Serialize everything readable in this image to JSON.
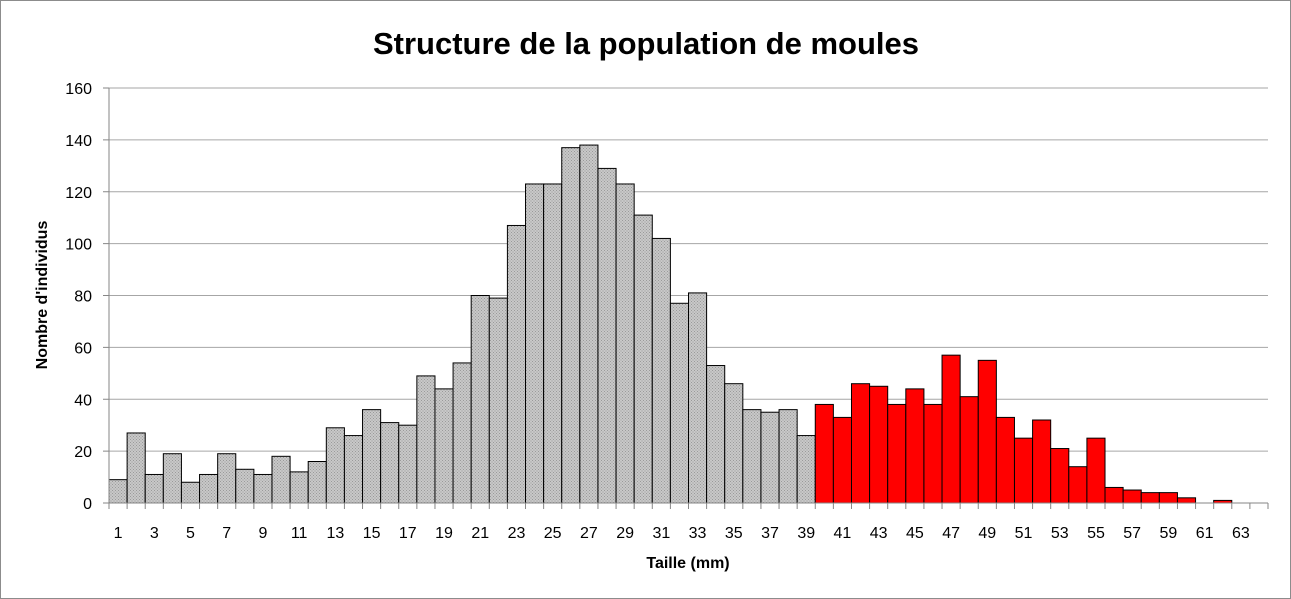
{
  "chart_data": {
    "type": "bar",
    "title": "Structure de la population de moules",
    "xlabel": "Taille (mm)",
    "ylabel": "Nombre d'individus",
    "ylim": [
      0,
      160
    ],
    "yticks": [
      0,
      20,
      40,
      60,
      80,
      100,
      120,
      140,
      160
    ],
    "grid": true,
    "legend": "none",
    "categories": [
      1,
      2,
      3,
      4,
      5,
      6,
      7,
      8,
      9,
      10,
      11,
      12,
      13,
      14,
      15,
      16,
      17,
      18,
      19,
      20,
      21,
      22,
      23,
      24,
      25,
      26,
      27,
      28,
      29,
      30,
      31,
      32,
      33,
      34,
      35,
      36,
      37,
      38,
      39,
      40,
      41,
      42,
      43,
      44,
      45,
      46,
      47,
      48,
      49,
      50,
      51,
      52,
      53,
      54,
      55,
      56,
      57,
      58,
      59,
      60,
      61,
      62,
      63,
      64
    ],
    "xtick_labels": [
      1,
      3,
      5,
      7,
      9,
      11,
      13,
      15,
      17,
      19,
      21,
      23,
      25,
      27,
      29,
      31,
      33,
      35,
      37,
      39,
      41,
      43,
      45,
      47,
      49,
      51,
      53,
      55,
      57,
      59,
      61,
      63
    ],
    "values": [
      9,
      27,
      11,
      19,
      8,
      11,
      19,
      13,
      11,
      18,
      12,
      16,
      29,
      26,
      36,
      31,
      30,
      49,
      44,
      54,
      80,
      79,
      107,
      123,
      123,
      137,
      138,
      129,
      123,
      111,
      102,
      77,
      81,
      53,
      46,
      36,
      35,
      36,
      26,
      38,
      33,
      46,
      45,
      38,
      44,
      38,
      57,
      41,
      55,
      33,
      25,
      32,
      21,
      14,
      25,
      6,
      5,
      4,
      4,
      2,
      0,
      1,
      0,
      0
    ],
    "highlight_from": 40,
    "colors": {
      "base_fill": "#c0c0c0",
      "highlight_fill": "#ff0000",
      "bar_stroke": "#000000",
      "grid": "#a6a6a6"
    }
  }
}
